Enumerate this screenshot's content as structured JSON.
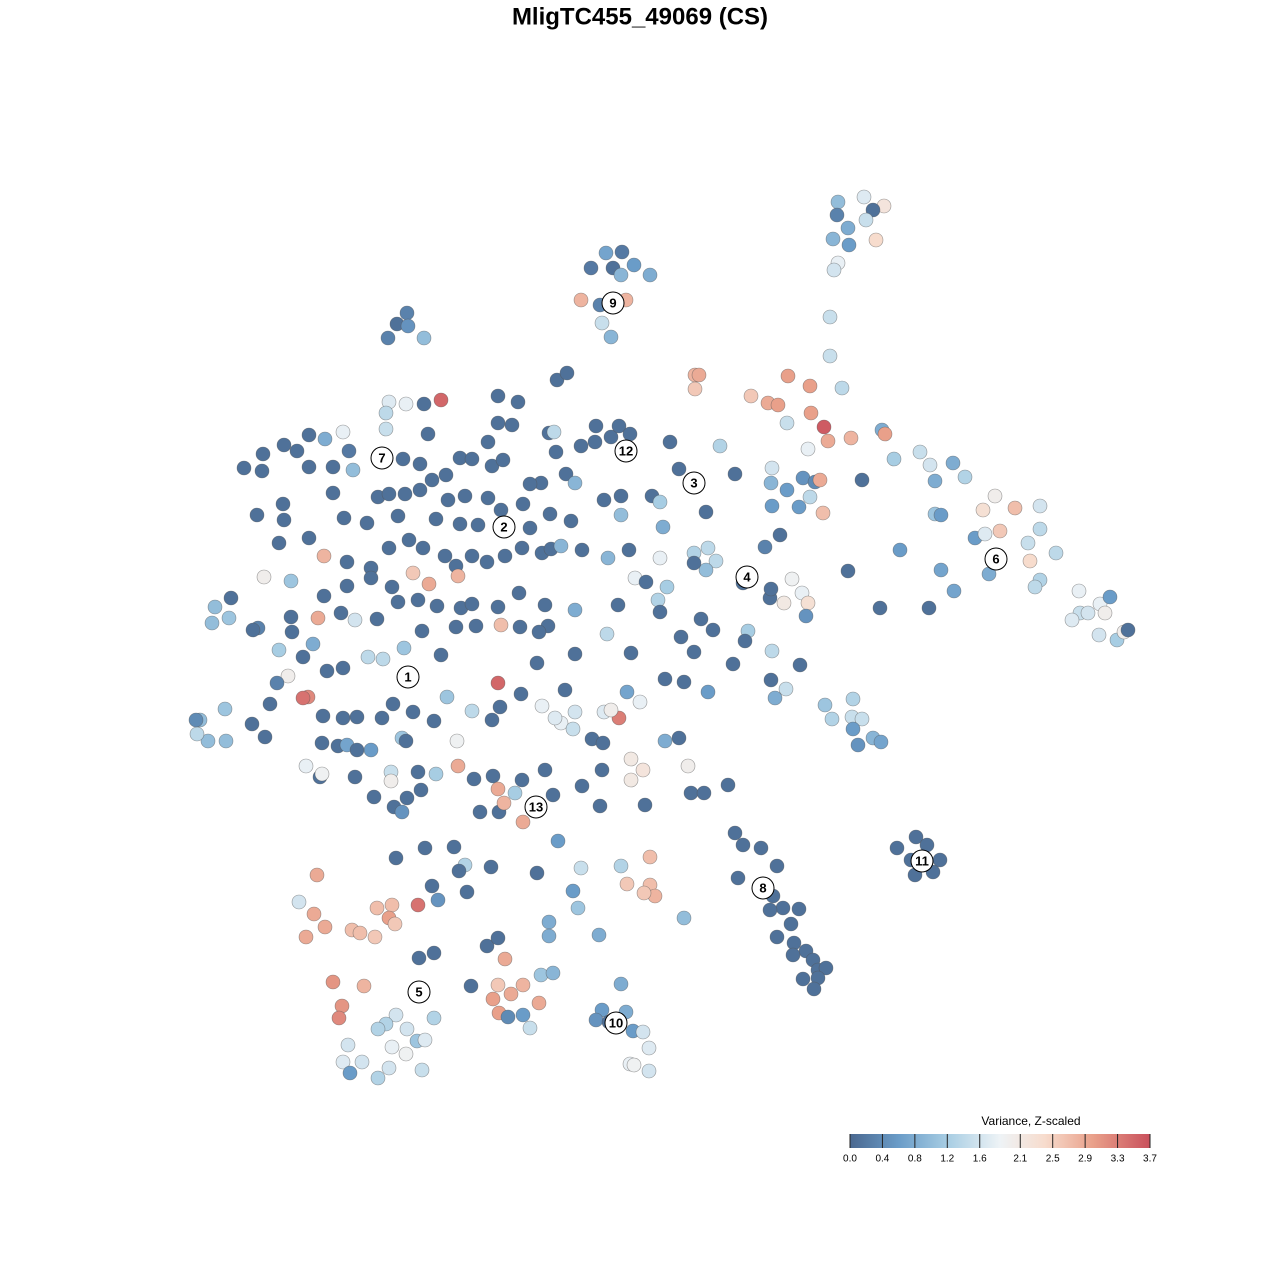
{
  "chart_data": {
    "type": "scatter",
    "title": "MligTC455_49069 (CS)",
    "xlim": [
      150,
      1180
    ],
    "ylim": [
      1110,
      170
    ],
    "x": [
      838,
      864,
      884,
      873,
      866,
      837,
      848,
      833,
      849,
      876,
      838,
      834,
      830,
      830,
      842,
      606,
      622,
      591,
      613,
      634,
      621,
      650,
      581,
      600,
      626,
      602,
      611,
      407,
      397,
      408,
      388,
      424,
      557,
      567,
      498,
      518,
      424,
      441,
      389,
      406,
      386,
      386,
      428,
      309,
      325,
      343,
      284,
      263,
      297,
      244,
      262,
      309,
      333,
      353,
      349,
      403,
      420,
      460,
      472,
      492,
      503,
      498,
      512,
      488,
      549,
      554,
      556,
      581,
      596,
      595,
      611,
      619,
      630,
      670,
      720,
      679,
      566,
      575,
      541,
      530,
      446,
      432,
      378,
      389,
      405,
      420,
      448,
      465,
      488,
      501,
      523,
      333,
      283,
      257,
      284,
      344,
      367,
      398,
      436,
      460,
      478,
      530,
      550,
      571,
      604,
      621,
      621,
      652,
      660,
      663,
      706,
      735,
      772,
      771,
      787,
      772,
      799,
      803,
      810,
      815,
      820,
      823,
      862,
      279,
      309,
      324,
      347,
      371,
      389,
      409,
      423,
      413,
      429,
      445,
      456,
      458,
      472,
      487,
      505,
      522,
      542,
      551,
      561,
      582,
      608,
      629,
      660,
      694,
      708,
      716,
      706,
      694,
      765,
      780,
      264,
      291,
      347,
      371,
      392,
      231,
      215,
      212,
      229,
      258,
      253,
      291,
      292,
      318,
      324,
      341,
      355,
      377,
      398,
      418,
      437,
      461,
      472,
      498,
      519,
      545,
      575,
      618,
      635,
      646,
      658,
      667,
      743,
      770,
      792,
      802,
      808,
      806,
      784,
      771,
      848,
      880,
      929,
      941,
      954,
      900,
      279,
      313,
      303,
      288,
      277,
      308,
      303,
      327,
      343,
      368,
      383,
      404,
      422,
      441,
      456,
      476,
      501,
      520,
      548,
      539,
      575,
      607,
      631,
      660,
      681,
      701,
      713,
      748,
      745,
      694,
      733,
      772,
      800,
      708,
      665,
      684,
      627,
      640,
      619,
      604,
      611,
      575,
      561,
      555,
      542,
      573,
      592,
      603,
      631,
      643,
      631,
      665,
      679,
      688,
      226,
      208,
      197,
      200,
      196,
      225,
      252,
      265,
      270,
      323,
      343,
      357,
      382,
      393,
      413,
      434,
      447,
      472,
      492,
      500,
      498,
      521,
      565,
      537,
      322,
      338,
      347,
      371,
      357,
      402,
      406,
      306,
      320,
      322,
      355,
      391,
      391,
      418,
      436,
      457,
      458,
      474,
      493,
      498,
      515,
      522,
      545,
      553,
      582,
      602,
      374,
      394,
      402,
      407,
      421,
      480,
      499,
      504,
      523,
      600,
      645,
      691,
      704,
      728,
      771,
      786,
      775,
      825,
      832,
      853,
      852,
      862,
      853,
      858,
      873,
      881,
      695,
      699,
      695,
      751,
      768,
      778,
      788,
      810,
      811,
      824,
      828,
      851,
      787,
      808,
      882,
      885,
      894,
      920,
      930,
      935,
      953,
      965,
      935,
      941,
      975,
      985,
      983,
      995,
      1000,
      1015,
      1040,
      1040,
      1028,
      1030,
      989,
      1040,
      1035,
      1056,
      1079,
      1080,
      1072,
      1088,
      1100,
      1110,
      1105,
      1099,
      1117,
      1124,
      1128,
      735,
      743,
      761,
      777,
      738,
      760,
      773,
      783,
      799,
      770,
      791,
      777,
      794,
      806,
      793,
      813,
      818,
      826,
      803,
      818,
      814,
      897,
      916,
      927,
      911,
      940,
      915,
      933,
      396,
      425,
      454,
      465,
      459,
      491,
      537,
      558,
      581,
      621,
      650,
      627,
      650,
      655,
      644,
      684,
      573,
      578,
      549,
      549,
      599,
      432,
      467,
      438,
      418,
      392,
      377,
      317,
      299,
      314,
      325,
      306,
      352,
      360,
      375,
      389,
      395,
      333,
      364,
      342,
      339,
      434,
      419,
      487,
      498,
      505,
      498,
      471,
      541,
      553,
      523,
      511,
      493,
      539,
      499,
      508,
      523,
      530,
      434,
      396,
      386,
      378,
      407,
      417,
      425,
      406,
      392,
      348,
      362,
      343,
      350,
      389,
      378,
      422,
      621,
      602,
      626,
      596,
      609,
      633,
      643,
      649,
      630,
      634,
      649
    ],
    "y": [
      202,
      197,
      206,
      210,
      220,
      215,
      228,
      239,
      245,
      240,
      263,
      270,
      317,
      356,
      388,
      253,
      252,
      268,
      268,
      265,
      275,
      275,
      300,
      305,
      300,
      323,
      337,
      313,
      324,
      326,
      338,
      338,
      380,
      373,
      396,
      402,
      404,
      400,
      402,
      404,
      413,
      429,
      434,
      435,
      439,
      432,
      445,
      454,
      451,
      468,
      471,
      467,
      467,
      470,
      451,
      459,
      464,
      458,
      459,
      466,
      460,
      423,
      425,
      442,
      433,
      432,
      452,
      446,
      426,
      442,
      437,
      426,
      434,
      442,
      446,
      469,
      474,
      483,
      483,
      484,
      475,
      480,
      497,
      494,
      494,
      490,
      500,
      496,
      498,
      510,
      504,
      493,
      504,
      515,
      520,
      518,
      523,
      516,
      519,
      524,
      525,
      528,
      514,
      521,
      500,
      496,
      515,
      496,
      502,
      527,
      512,
      474,
      468,
      483,
      490,
      506,
      507,
      478,
      497,
      482,
      480,
      513,
      480,
      543,
      538,
      556,
      562,
      568,
      548,
      540,
      548,
      573,
      584,
      556,
      566,
      576,
      556,
      562,
      556,
      548,
      553,
      549,
      546,
      550,
      558,
      550,
      558,
      553,
      548,
      561,
      570,
      563,
      547,
      535,
      577,
      581,
      586,
      578,
      587,
      598,
      607,
      623,
      618,
      628,
      630,
      617,
      632,
      618,
      596,
      613,
      620,
      619,
      602,
      600,
      606,
      608,
      604,
      607,
      593,
      605,
      610,
      605,
      578,
      582,
      600,
      587,
      583,
      598,
      579,
      593,
      603,
      616,
      603,
      589,
      571,
      608,
      608,
      570,
      591,
      550,
      650,
      644,
      657,
      676,
      683,
      697,
      698,
      671,
      668,
      657,
      659,
      648,
      631,
      655,
      627,
      626,
      625,
      627,
      626,
      632,
      654,
      634,
      653,
      612,
      637,
      619,
      630,
      631,
      641,
      652,
      664,
      651,
      665,
      692,
      679,
      682,
      692,
      702,
      718,
      712,
      710,
      712,
      723,
      718,
      706,
      729,
      739,
      743,
      759,
      770,
      780,
      741,
      738,
      766,
      741,
      741,
      734,
      720,
      720,
      709,
      724,
      737,
      704,
      716,
      718,
      717,
      718,
      704,
      712,
      721,
      697,
      711,
      720,
      707,
      683,
      694,
      690,
      663,
      743,
      746,
      745,
      750,
      750,
      738,
      741,
      766,
      777,
      774,
      777,
      772,
      781,
      772,
      774,
      741,
      766,
      779,
      776,
      789,
      793,
      780,
      770,
      795,
      786,
      770,
      797,
      807,
      812,
      798,
      790,
      812,
      812,
      803,
      822,
      806,
      805,
      793,
      793,
      785,
      680,
      689,
      698,
      705,
      719,
      699,
      717,
      719,
      729,
      745,
      738,
      742,
      375,
      375,
      389,
      396,
      403,
      405,
      376,
      386,
      413,
      427,
      441,
      438,
      423,
      449,
      430,
      434,
      459,
      452,
      465,
      481,
      463,
      477,
      514,
      515,
      538,
      534,
      510,
      496,
      531,
      508,
      506,
      529,
      543,
      561,
      574,
      580,
      587,
      553,
      591,
      613,
      620,
      613,
      604,
      597,
      613,
      635,
      640,
      632,
      630,
      833,
      845,
      848,
      866,
      878,
      889,
      896,
      908,
      909,
      910,
      924,
      937,
      943,
      951,
      955,
      960,
      970,
      968,
      979,
      978,
      989,
      848,
      837,
      845,
      860,
      860,
      875,
      872,
      858,
      848,
      847,
      865,
      871,
      867,
      873,
      841,
      868,
      866,
      857,
      884,
      885,
      896,
      893,
      918,
      891,
      908,
      922,
      936,
      935,
      886,
      892,
      900,
      905,
      905,
      908,
      875,
      902,
      914,
      927,
      937,
      930,
      933,
      937,
      918,
      924,
      982,
      986,
      1006,
      1018,
      953,
      958,
      946,
      938,
      959,
      985,
      986,
      975,
      973,
      985,
      994,
      999,
      1003,
      1013,
      1017,
      1015,
      1028,
      1018,
      1015,
      1024,
      1029,
      1029,
      1041,
      1040,
      1054,
      1047,
      1045,
      1062,
      1062,
      1073,
      1068,
      1078,
      1070,
      984,
      1010,
      1012,
      1020,
      1022,
      1031,
      1032,
      1048,
      1064,
      1065,
      1071
    ],
    "z": [
      1.0,
      1.7,
      2.2,
      0.1,
      1.5,
      0.3,
      0.8,
      0.9,
      0.6,
      2.4,
      1.8,
      1.6,
      1.5,
      1.5,
      1.4,
      0.7,
      0.2,
      0.2,
      0.1,
      0.6,
      0.9,
      0.8,
      2.8,
      0.3,
      2.8,
      1.5,
      0.9,
      0.3,
      0.1,
      0.5,
      0.3,
      1.0,
      0.1,
      0.1,
      0.1,
      0.1,
      0.1,
      3.5,
      1.7,
      1.8,
      1.4,
      1.5,
      0.1,
      0.1,
      0.8,
      1.8,
      0.1,
      0.1,
      0.1,
      0.1,
      0.1,
      0.1,
      0.1,
      1.0,
      0.2,
      0.1,
      0.1,
      0.1,
      0.1,
      0.1,
      0.1,
      0.1,
      0.1,
      0.1,
      0.1,
      1.4,
      0.1,
      0.1,
      0.1,
      0.1,
      0.1,
      0.1,
      0.1,
      0.1,
      1.3,
      0.1,
      0.1,
      0.9,
      0.1,
      0.1,
      0.1,
      0.1,
      0.1,
      0.1,
      0.1,
      0.1,
      0.1,
      0.1,
      0.1,
      0.1,
      0.1,
      0.1,
      0.1,
      0.1,
      0.1,
      0.1,
      0.1,
      0.1,
      0.1,
      0.1,
      0.1,
      0.1,
      0.1,
      0.1,
      0.1,
      0.1,
      1.0,
      0.1,
      1.2,
      0.8,
      0.1,
      0.1,
      1.6,
      0.9,
      0.6,
      0.6,
      0.6,
      0.5,
      1.4,
      0.4,
      2.9,
      2.7,
      0.1,
      0.1,
      0.1,
      2.8,
      0.1,
      0.1,
      0.1,
      0.1,
      0.1,
      2.6,
      2.9,
      0.1,
      0.1,
      2.8,
      0.1,
      0.1,
      0.1,
      0.1,
      0.1,
      0.1,
      0.9,
      0.1,
      0.9,
      0.1,
      1.8,
      1.3,
      1.4,
      1.4,
      1.0,
      0.1,
      0.3,
      0.1,
      2.0,
      1.1,
      0.1,
      0.1,
      0.1,
      0.1,
      1.0,
      1.0,
      1.1,
      0.3,
      0.1,
      0.1,
      0.1,
      2.9,
      0.1,
      0.1,
      1.6,
      0.1,
      0.1,
      0.1,
      0.1,
      0.1,
      0.1,
      0.1,
      0.1,
      0.1,
      0.8,
      0.1,
      1.8,
      0.1,
      1.3,
      1.2,
      0.1,
      0.1,
      1.9,
      1.8,
      2.3,
      0.5,
      2.1,
      0.1,
      0.1,
      0.1,
      0.1,
      0.7,
      0.7,
      0.6,
      1.2,
      0.8,
      0.1,
      2.0,
      0.3,
      3.2,
      3.4,
      0.1,
      0.1,
      1.4,
      1.4,
      1.1,
      0.1,
      0.1,
      0.1,
      0.1,
      2.7,
      0.1,
      0.1,
      0.1,
      0.1,
      1.4,
      0.1,
      0.1,
      0.1,
      0.1,
      0.1,
      1.2,
      0.1,
      0.1,
      0.1,
      1.4,
      0.1,
      0.6,
      0.1,
      0.1,
      0.7,
      1.8,
      3.3,
      1.7,
      2.0,
      1.6,
      1.8,
      1.7,
      1.8,
      1.5,
      0.1,
      0.1,
      2.1,
      2.2,
      2.1,
      0.8,
      0.1,
      2.0,
      1.0,
      1.0,
      1.4,
      1.0,
      0.4,
      1.1,
      0.1,
      0.1,
      0.1,
      0.1,
      0.1,
      0.1,
      0.1,
      0.1,
      0.1,
      0.1,
      1.1,
      1.4,
      0.1,
      0.1,
      3.5,
      0.1,
      0.1,
      0.1,
      0.1,
      0.1,
      0.7,
      0.6,
      0.1,
      1.1,
      0.1,
      1.8,
      0.1,
      1.9,
      0.1,
      1.5,
      2.0,
      0.1,
      1.2,
      1.9,
      2.9,
      0.1,
      0.1,
      2.9,
      1.2,
      0.1,
      0.1,
      0.1,
      0.1,
      0.1,
      0.1,
      0.1,
      0.5,
      0.1,
      0.1,
      0.1,
      0.1,
      2.8,
      2.9,
      0.1,
      0.1,
      0.1,
      0.1,
      0.1,
      0.1,
      1.5,
      0.8,
      1.1,
      1.3,
      1.3,
      1.5,
      1.5,
      0.6,
      0.5,
      0.9,
      0.7,
      2.8,
      2.9,
      2.6,
      2.6,
      2.9,
      3.0,
      3.0,
      3.0,
      3.0,
      3.6,
      2.9,
      2.8,
      1.5,
      1.8,
      0.8,
      3.0,
      1.2,
      1.5,
      1.6,
      0.8,
      0.8,
      1.3,
      1.1,
      0.6,
      0.6,
      1.7,
      2.3,
      2.0,
      2.6,
      2.7,
      1.6,
      1.4,
      1.5,
      2.4,
      0.8,
      1.3,
      1.4,
      1.4,
      1.8,
      1.5,
      1.7,
      1.6,
      1.8,
      0.6,
      2.0,
      1.6,
      1.2,
      2.0,
      0.1,
      0.1,
      0.1,
      0.1,
      0.1,
      0.1,
      0.1,
      0.1,
      0.1,
      0.1,
      0.1,
      0.1,
      0.1,
      0.1,
      0.1,
      0.1,
      0.1,
      0.1,
      0.1,
      0.1,
      0.1,
      0.1,
      0.1,
      0.1,
      0.1,
      0.1,
      0.1,
      0.1,
      0.1,
      0.1,
      0.1,
      0.1,
      1.3,
      0.1,
      0.1,
      0.1,
      0.6,
      1.5,
      1.3,
      2.7,
      2.6,
      2.7,
      2.8,
      2.6,
      1.0,
      0.6,
      1.1,
      0.8,
      0.8,
      0.8,
      0.1,
      0.1,
      0.5,
      3.4,
      2.7,
      2.7,
      2.9,
      1.6,
      2.9,
      2.9,
      2.9,
      2.7,
      2.7,
      2.6,
      3.0,
      2.6,
      3.1,
      2.8,
      3.1,
      3.2,
      0.1,
      0.1,
      0.1,
      0.1,
      2.9,
      2.6,
      0.1,
      1.1,
      0.9,
      2.8,
      2.9,
      3.0,
      2.9,
      3.0,
      0.4,
      0.6,
      1.5,
      1.3,
      1.6,
      1.3,
      1.3,
      1.6,
      1.1,
      1.7,
      1.9,
      1.8,
      1.6,
      1.6,
      1.7,
      0.6,
      1.6,
      1.3,
      1.5,
      0.8,
      0.6,
      0.8,
      0.5,
      0.1,
      0.6,
      1.6,
      1.7,
      1.8,
      1.9,
      1.6
    ],
    "cluster_labels": [
      {
        "text": "1",
        "x": 408,
        "y": 677
      },
      {
        "text": "2",
        "x": 504,
        "y": 527
      },
      {
        "text": "3",
        "x": 694,
        "y": 483
      },
      {
        "text": "4",
        "x": 747,
        "y": 577
      },
      {
        "text": "5",
        "x": 419,
        "y": 992
      },
      {
        "text": "6",
        "x": 996,
        "y": 559
      },
      {
        "text": "7",
        "x": 382,
        "y": 458
      },
      {
        "text": "8",
        "x": 763,
        "y": 888
      },
      {
        "text": "9",
        "x": 613,
        "y": 303
      },
      {
        "text": "10",
        "x": 616,
        "y": 1023
      },
      {
        "text": "11",
        "x": 922,
        "y": 861
      },
      {
        "text": "12",
        "x": 626,
        "y": 451
      },
      {
        "text": "13",
        "x": 536,
        "y": 807
      }
    ],
    "colorbar": {
      "title": "Variance, Z-scaled",
      "lim": [
        0,
        3.7
      ],
      "ticks": [
        {
          "value": 0,
          "label": "0.0"
        },
        0.4,
        0.8,
        1.2,
        1.6,
        2.1,
        2.5,
        2.9,
        3.3,
        3.7
      ],
      "stops": [
        [
          0,
          "#4a6890"
        ],
        [
          0.6,
          "#6a9cc8"
        ],
        [
          1.2,
          "#a7cde3"
        ],
        [
          1.85,
          "#eef3f6"
        ],
        [
          2.4,
          "#f7dccd"
        ],
        [
          3.0,
          "#e9a08a"
        ],
        [
          3.7,
          "#c9505c"
        ]
      ]
    }
  }
}
